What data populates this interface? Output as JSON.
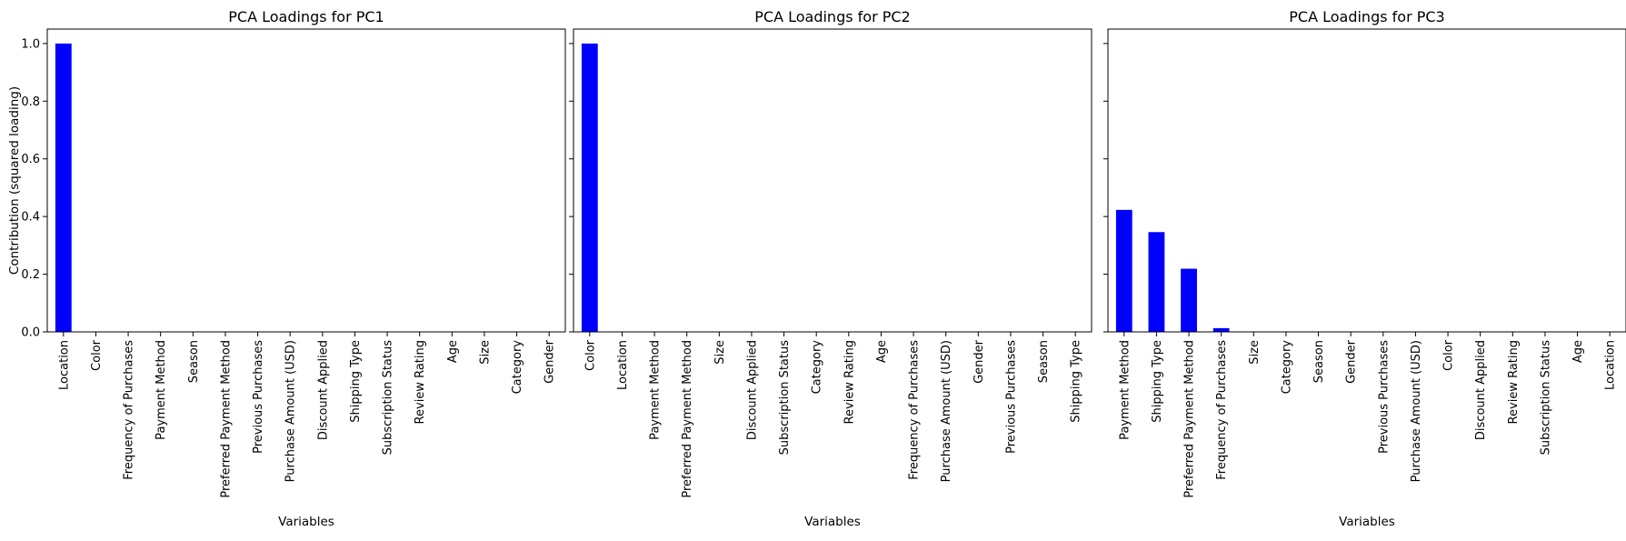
{
  "chart_data": [
    {
      "type": "bar",
      "title": "PCA Loadings for PC1",
      "xlabel": "Variables",
      "ylabel": "Contribution (squared loading)",
      "ylim": [
        0,
        1.05
      ],
      "yticks": [
        "0.0",
        "0.2",
        "0.4",
        "0.6",
        "0.8",
        "1.0"
      ],
      "bar_color": "#0000ff",
      "categories": [
        "Location",
        "Color",
        "Frequency of Purchases",
        "Payment Method",
        "Season",
        "Preferred Payment Method",
        "Previous Purchases",
        "Purchase Amount (USD)",
        "Discount Applied",
        "Shipping Type",
        "Subscription Status",
        "Review Rating",
        "Age",
        "Size",
        "Category",
        "Gender"
      ],
      "values": [
        1.0,
        0,
        0,
        0,
        0,
        0,
        0,
        0,
        0,
        0,
        0,
        0,
        0,
        0,
        0,
        0
      ]
    },
    {
      "type": "bar",
      "title": "PCA Loadings for PC2",
      "xlabel": "Variables",
      "ylabel": "",
      "ylim": [
        0,
        1.05
      ],
      "yticks": [
        "",
        "",
        "",
        "",
        "",
        ""
      ],
      "bar_color": "#0000ff",
      "categories": [
        "Color",
        "Location",
        "Payment Method",
        "Preferred Payment Method",
        "Size",
        "Discount Applied",
        "Subscription Status",
        "Category",
        "Review Rating",
        "Age",
        "Frequency of Purchases",
        "Purchase Amount (USD)",
        "Gender",
        "Previous Purchases",
        "Season",
        "Shipping Type"
      ],
      "values": [
        1.0,
        0,
        0,
        0,
        0,
        0,
        0,
        0,
        0,
        0,
        0,
        0,
        0,
        0,
        0,
        0
      ]
    },
    {
      "type": "bar",
      "title": "PCA Loadings for PC3",
      "xlabel": "Variables",
      "ylabel": "",
      "ylim": [
        0,
        1.05
      ],
      "yticks": [
        "",
        "",
        "",
        "",
        "",
        ""
      ],
      "bar_color": "#0000ff",
      "categories": [
        "Payment Method",
        "Shipping Type",
        "Preferred Payment Method",
        "Frequency of Purchases",
        "Size",
        "Category",
        "Season",
        "Gender",
        "Previous Purchases",
        "Purchase Amount (USD)",
        "Color",
        "Discount Applied",
        "Review Rating",
        "Subscription Status",
        "Age",
        "Location"
      ],
      "values": [
        0.423,
        0.346,
        0.219,
        0.013,
        0,
        0,
        0,
        0,
        0,
        0,
        0,
        0,
        0,
        0,
        0,
        0
      ]
    }
  ]
}
